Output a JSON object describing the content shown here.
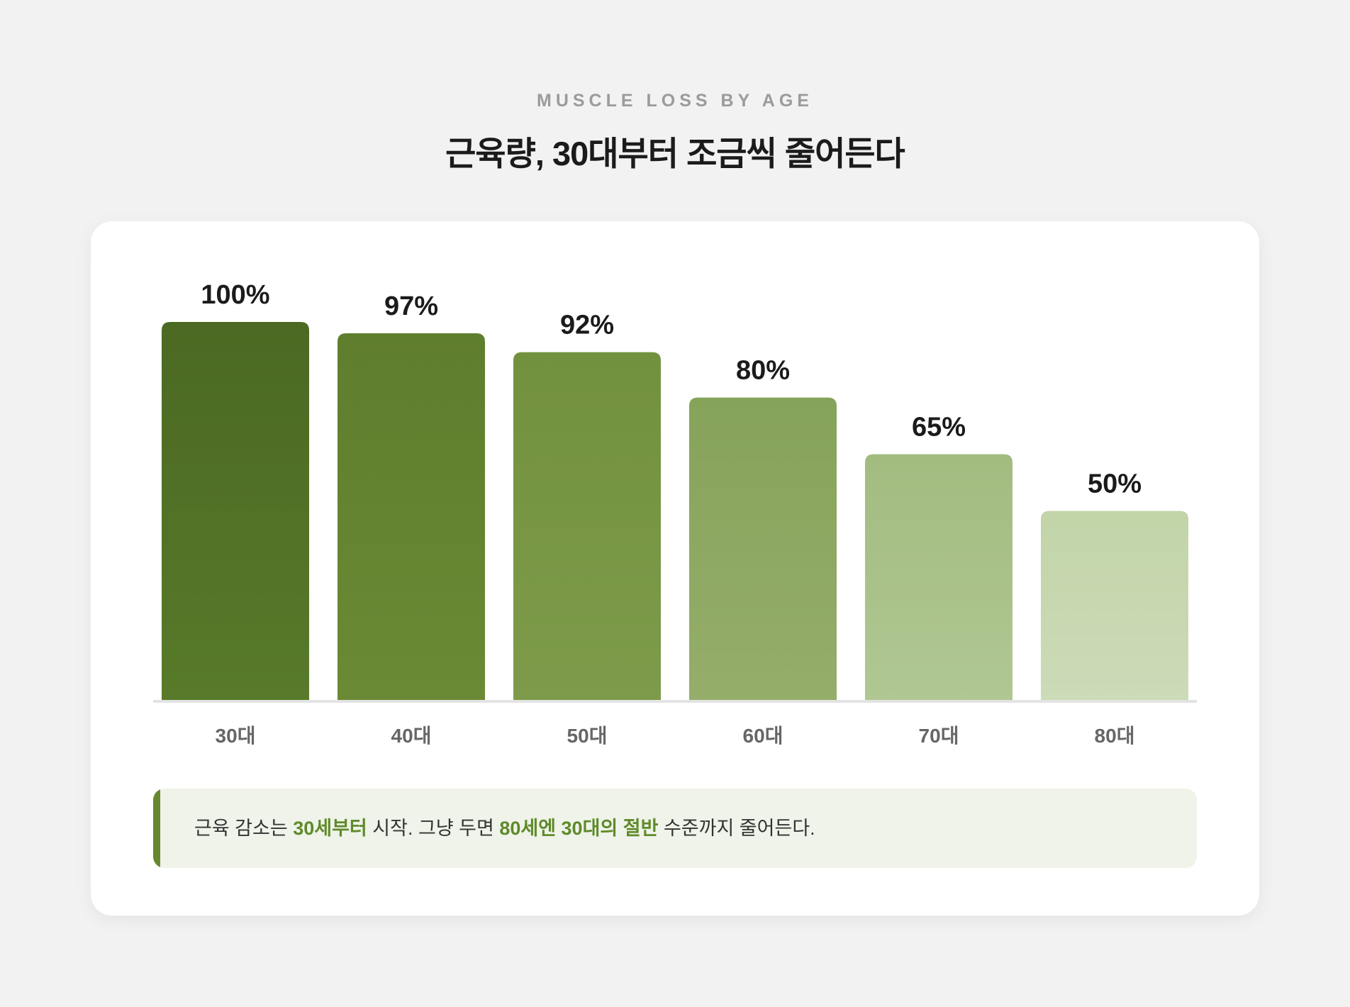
{
  "header": {
    "eyebrow": "MUSCLE LOSS BY AGE",
    "title": "근육량, 30대부터 조금씩 줄어든다"
  },
  "chart_data": {
    "type": "bar",
    "categories": [
      "30대",
      "40대",
      "50대",
      "60대",
      "70대",
      "80대"
    ],
    "values": [
      100,
      97,
      92,
      80,
      65,
      50
    ],
    "value_labels": [
      "100%",
      "97%",
      "92%",
      "80%",
      "65%",
      "50%"
    ],
    "ylim": [
      0,
      100
    ],
    "grid": false,
    "colors_top": [
      "#4b6922",
      "#5f7e2e",
      "#72913e",
      "#86a35a",
      "#a2bc80",
      "#c2d4a8"
    ],
    "colors_bottom": [
      "#587a2a",
      "#6a8a35",
      "#7d9b4a",
      "#95ae6a",
      "#b0c792",
      "#ccdbb8"
    ]
  },
  "callout": {
    "segments": [
      {
        "text": "근육 감소는 ",
        "highlight": false
      },
      {
        "text": "30세부터",
        "highlight": true
      },
      {
        "text": " 시작. 그냥 두면 ",
        "highlight": false
      },
      {
        "text": "80세엔 30대의 절반",
        "highlight": true
      },
      {
        "text": " 수준까지 줄어든다.",
        "highlight": false
      }
    ]
  },
  "colors": {
    "accent": "#5f8a2a",
    "callout_bg": "#eff3e9",
    "axis": "#e3e3e3"
  }
}
